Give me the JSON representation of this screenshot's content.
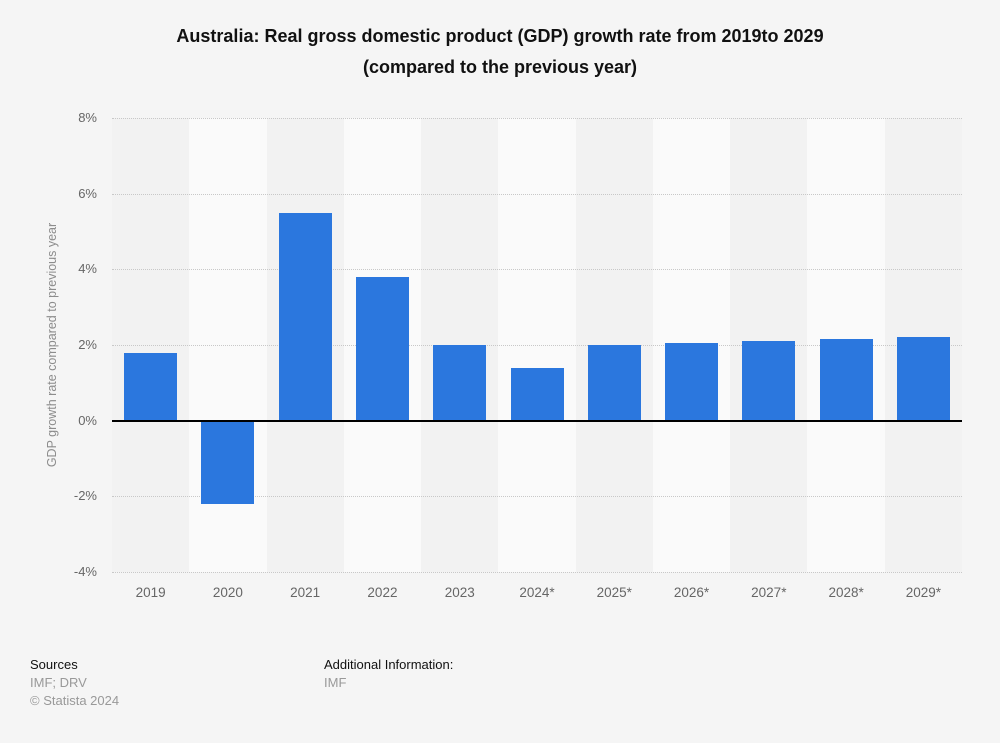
{
  "title": {
    "line1": "Australia: Real gross domestic product (GDP) growth rate from 2019to 2029",
    "line2": "(compared to the previous year)"
  },
  "chart_data": {
    "type": "bar",
    "title": "Australia: Real gross domestic product (GDP) growth rate from 2019to 2029 (compared to the previous year)",
    "categories": [
      "2019",
      "2020",
      "2021",
      "2022",
      "2023",
      "2024*",
      "2025*",
      "2026*",
      "2027*",
      "2028*",
      "2029*"
    ],
    "values": [
      1.8,
      -2.2,
      5.5,
      3.8,
      2.0,
      1.4,
      2.0,
      2.05,
      2.1,
      2.15,
      2.2
    ],
    "xlabel": "",
    "ylabel": "GDP growth rate compared to previous year",
    "ylim": [
      -4,
      8
    ],
    "yticks": [
      8,
      6,
      4,
      2,
      0,
      -2,
      -4
    ],
    "ytick_labels": [
      "8%",
      "6%",
      "4%",
      "2%",
      "0%",
      "-2%",
      "-4%"
    ],
    "grid": "horizontal-dotted",
    "legend": null,
    "bar_color": "#2b77de"
  },
  "footer": {
    "sources_label": "Sources",
    "sources_value": "IMF; DRV",
    "copyright": "© Statista 2024",
    "additional_label": "Additional Information:",
    "additional_value": "IMF"
  },
  "colors": {
    "background": "#f5f5f5",
    "bar": "#2b77de",
    "stripe_dark": "#f2f2f2",
    "stripe_light": "#fafafa",
    "gridline": "#c8c8c8",
    "zero_line": "#000000",
    "axis_text": "#666666",
    "axis_title_text": "#8c8c8c",
    "title_text": "#111111",
    "footer_label_text": "#111111",
    "footer_value_text": "#999999"
  }
}
